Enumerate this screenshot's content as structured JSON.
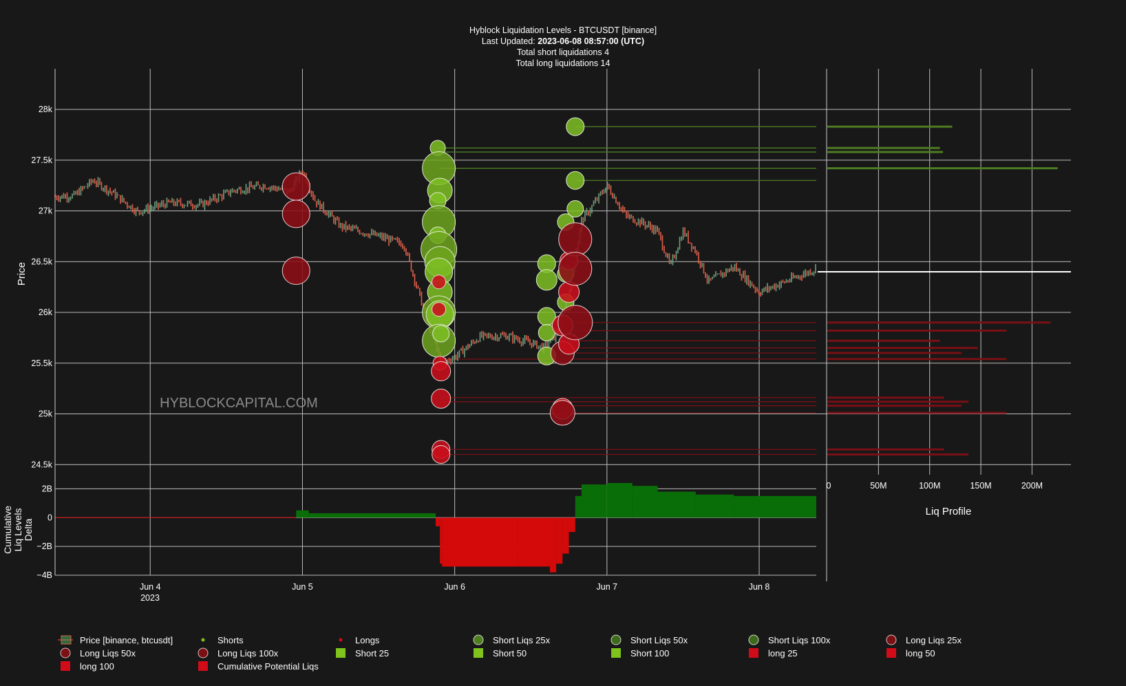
{
  "header": {
    "title": "Hyblock Liquidation Levels - BTCUSDT [binance]",
    "updated_label": "Last Updated:",
    "updated_value": "2023-06-08 08:57:00 (UTC)",
    "shorts_total": "Total short liquidations 4",
    "longs_total": "Total long liquidations 14"
  },
  "watermark": "HYBLOCKCAPITAL.COM",
  "colors": {
    "background": "#181818",
    "grid": "#bdbdbd",
    "short_fill": "#7fc31c",
    "short_dark": "#4a7a1e",
    "long_fill": "#d10c18",
    "long_dark": "#7a0f14",
    "delta_pos": "#0a6e08",
    "delta_neg": "#d40a0a",
    "candle_up": "#6fa07e",
    "candle_down": "#e0604a"
  },
  "chart_data": {
    "type": "scatter",
    "ylabel": "Price",
    "y_ticks": [
      "24.5k",
      "25k",
      "25.5k",
      "26k",
      "26.5k",
      "27k",
      "27.5k",
      "28k"
    ],
    "y_tick_values": [
      24500,
      25000,
      25500,
      26000,
      26500,
      27000,
      27500,
      28000
    ],
    "ylim": [
      24400,
      28400
    ],
    "x_ticks": [
      "Jun 4",
      "Jun 5",
      "Jun 6",
      "Jun 7",
      "Jun 8"
    ],
    "x_tick_year": "2023",
    "x_range": [
      "2023-06-03 09:00",
      "2023-06-08 09:00"
    ],
    "price_path": [
      [
        "2023-06-03 09:00",
        27140
      ],
      [
        "2023-06-03 12:00",
        27150
      ],
      [
        "2023-06-03 15:00",
        27300
      ],
      [
        "2023-06-03 18:00",
        27180
      ],
      [
        "2023-06-03 22:00",
        26990
      ],
      [
        "2023-06-04 03:00",
        27080
      ],
      [
        "2023-06-04 08:00",
        27060
      ],
      [
        "2023-06-04 13:00",
        27200
      ],
      [
        "2023-06-04 18:00",
        27250
      ],
      [
        "2023-06-04 22:00",
        27190
      ],
      [
        "2023-06-05 00:00",
        27400
      ],
      [
        "2023-06-05 02:00",
        27100
      ],
      [
        "2023-06-05 06:00",
        26850
      ],
      [
        "2023-06-05 12:00",
        26750
      ],
      [
        "2023-06-05 16:00",
        26670
      ],
      [
        "2023-06-05 20:00",
        25850
      ],
      [
        "2023-06-05 22:00",
        25500
      ],
      [
        "2023-06-06 00:00",
        25560
      ],
      [
        "2023-06-06 04:00",
        25760
      ],
      [
        "2023-06-06 08:00",
        25770
      ],
      [
        "2023-06-06 12:00",
        25700
      ],
      [
        "2023-06-06 14:00",
        25650
      ],
      [
        "2023-06-06 16:00",
        25780
      ],
      [
        "2023-06-06 18:00",
        26200
      ],
      [
        "2023-06-06 20:00",
        26900
      ],
      [
        "2023-06-07 00:00",
        27250
      ],
      [
        "2023-06-07 03:00",
        26950
      ],
      [
        "2023-06-07 06:00",
        26870
      ],
      [
        "2023-06-07 08:00",
        26800
      ],
      [
        "2023-06-07 10:00",
        26450
      ],
      [
        "2023-06-07 12:00",
        26800
      ],
      [
        "2023-06-07 14:00",
        26600
      ],
      [
        "2023-06-07 16:00",
        26300
      ],
      [
        "2023-06-07 20:00",
        26450
      ],
      [
        "2023-06-08 00:00",
        26200
      ],
      [
        "2023-06-08 04:00",
        26300
      ],
      [
        "2023-06-08 09:00",
        26430
      ]
    ],
    "short_bubbles": [
      {
        "t": "2023-06-05 21:20",
        "p": 27620,
        "r": 11
      },
      {
        "t": "2023-06-05 21:30",
        "p": 27420,
        "r": 24
      },
      {
        "t": "2023-06-05 21:40",
        "p": 27200,
        "r": 18
      },
      {
        "t": "2023-06-05 21:20",
        "p": 27100,
        "r": 12
      },
      {
        "t": "2023-06-05 21:30",
        "p": 26890,
        "r": 24
      },
      {
        "t": "2023-06-05 21:20",
        "p": 26760,
        "r": 12
      },
      {
        "t": "2023-06-05 21:30",
        "p": 26620,
        "r": 26
      },
      {
        "t": "2023-06-05 21:40",
        "p": 26500,
        "r": 22
      },
      {
        "t": "2023-06-05 21:30",
        "p": 26400,
        "r": 20
      },
      {
        "t": "2023-06-05 21:40",
        "p": 26200,
        "r": 18
      },
      {
        "t": "2023-06-05 21:30",
        "p": 26000,
        "r": 24
      },
      {
        "t": "2023-06-05 21:40",
        "p": 25980,
        "r": 20
      },
      {
        "t": "2023-06-05 21:30",
        "p": 25720,
        "r": 24
      },
      {
        "t": "2023-06-05 21:50",
        "p": 25790,
        "r": 12
      },
      {
        "t": "2023-06-06 14:30",
        "p": 26480,
        "r": 13
      },
      {
        "t": "2023-06-06 14:30",
        "p": 26320,
        "r": 15
      },
      {
        "t": "2023-06-06 17:30",
        "p": 26890,
        "r": 12
      },
      {
        "t": "2023-06-06 17:30",
        "p": 26380,
        "r": 12
      },
      {
        "t": "2023-06-06 17:30",
        "p": 26100,
        "r": 12
      },
      {
        "t": "2023-06-06 14:30",
        "p": 25960,
        "r": 13
      },
      {
        "t": "2023-06-06 14:30",
        "p": 25800,
        "r": 12
      },
      {
        "t": "2023-06-06 14:30",
        "p": 25570,
        "r": 13
      },
      {
        "t": "2023-06-06 19:00",
        "p": 27830,
        "r": 13
      },
      {
        "t": "2023-06-06 19:00",
        "p": 27300,
        "r": 13
      },
      {
        "t": "2023-06-06 19:00",
        "p": 27020,
        "r": 12
      }
    ],
    "long_bubbles": [
      {
        "t": "2023-06-04 23:00",
        "p": 27240,
        "r": 20
      },
      {
        "t": "2023-06-04 23:00",
        "p": 26970,
        "r": 20
      },
      {
        "t": "2023-06-04 23:00",
        "p": 26410,
        "r": 20
      },
      {
        "t": "2023-06-05 21:30",
        "p": 26300,
        "r": 10
      },
      {
        "t": "2023-06-05 21:30",
        "p": 26030,
        "r": 10
      },
      {
        "t": "2023-06-05 21:40",
        "p": 25500,
        "r": 10
      },
      {
        "t": "2023-06-05 21:50",
        "p": 25420,
        "r": 14
      },
      {
        "t": "2023-06-05 21:50",
        "p": 25150,
        "r": 14
      },
      {
        "t": "2023-06-05 21:50",
        "p": 24650,
        "r": 13
      },
      {
        "t": "2023-06-05 21:50",
        "p": 24600,
        "r": 13
      },
      {
        "t": "2023-06-06 17:00",
        "p": 25870,
        "r": 15
      },
      {
        "t": "2023-06-06 17:00",
        "p": 25600,
        "r": 17
      },
      {
        "t": "2023-06-06 17:00",
        "p": 25050,
        "r": 15
      },
      {
        "t": "2023-06-06 17:00",
        "p": 25010,
        "r": 18
      },
      {
        "t": "2023-06-06 18:00",
        "p": 26510,
        "r": 13
      },
      {
        "t": "2023-06-06 18:00",
        "p": 26200,
        "r": 15
      },
      {
        "t": "2023-06-06 18:00",
        "p": 25690,
        "r": 15
      },
      {
        "t": "2023-06-06 19:00",
        "p": 26720,
        "r": 24
      },
      {
        "t": "2023-06-06 19:00",
        "p": 26430,
        "r": 24
      },
      {
        "t": "2023-06-06 19:00",
        "p": 25900,
        "r": 25
      }
    ],
    "short_levels": [
      {
        "t": "2023-06-06 19:00",
        "p": 27830,
        "vol": 122000000
      },
      {
        "t": "2023-06-05 21:20",
        "p": 27620,
        "vol": 110000000
      },
      {
        "t": "2023-06-05 21:20",
        "p": 27580,
        "vol": 113000000
      },
      {
        "t": "2023-06-05 21:30",
        "p": 27420,
        "vol": 225000000
      },
      {
        "t": "2023-06-06 19:00",
        "p": 27300,
        "vol": 0
      }
    ],
    "long_levels": [
      {
        "t": "2023-06-06 19:00",
        "p": 25900,
        "vol": 218000000
      },
      {
        "t": "2023-06-06 17:00",
        "p": 25820,
        "vol": 175000000
      },
      {
        "t": "2023-06-06 18:00",
        "p": 25720,
        "vol": 110000000
      },
      {
        "t": "2023-06-06 18:00",
        "p": 25650,
        "vol": 147000000
      },
      {
        "t": "2023-06-06 17:00",
        "p": 25600,
        "vol": 131000000
      },
      {
        "t": "2023-06-05 21:50",
        "p": 25540,
        "vol": 175000000
      },
      {
        "t": "2023-06-05 21:50",
        "p": 25160,
        "vol": 114000000
      },
      {
        "t": "2023-06-05 21:50",
        "p": 25120,
        "vol": 138000000
      },
      {
        "t": "2023-06-06 17:00",
        "p": 25080,
        "vol": 131000000
      },
      {
        "t": "2023-06-06 17:00",
        "p": 25010,
        "vol": 175000000
      },
      {
        "t": "2023-06-05 21:50",
        "p": 24650,
        "vol": 114000000
      },
      {
        "t": "2023-06-05 21:50",
        "p": 24600,
        "vol": 138000000
      }
    ],
    "current_price": 26400,
    "profile": {
      "xlabel": "Liq Profile",
      "x_ticks": [
        "0",
        "50M",
        "100M",
        "150M",
        "200M"
      ],
      "x_tick_values": [
        0,
        50000000,
        100000000,
        150000000,
        200000000
      ],
      "xlim": [
        0,
        238000000
      ]
    },
    "delta": {
      "ylabel_lines": [
        "Cumulative",
        "Liq Levels",
        "Delta"
      ],
      "y_ticks": [
        "−4B",
        "−2B",
        "0",
        "2B"
      ],
      "y_tick_values": [
        -4000000000,
        -2000000000,
        0,
        2000000000
      ],
      "ylim": [
        -4000000000,
        2400000000
      ],
      "steps": [
        [
          "2023-06-03 09:00",
          0
        ],
        [
          "2023-06-04 23:00",
          500000000
        ],
        [
          "2023-06-05 01:00",
          300000000
        ],
        [
          "2023-06-05 21:00",
          -600000000
        ],
        [
          "2023-06-05 21:40",
          -3200000000
        ],
        [
          "2023-06-05 22:00",
          -3400000000
        ],
        [
          "2023-06-06 10:00",
          -3400000000
        ],
        [
          "2023-06-06 15:00",
          -3800000000
        ],
        [
          "2023-06-06 16:00",
          -3200000000
        ],
        [
          "2023-06-06 17:00",
          -2500000000
        ],
        [
          "2023-06-06 18:00",
          -1000000000
        ],
        [
          "2023-06-06 19:00",
          1500000000
        ],
        [
          "2023-06-06 20:00",
          2300000000
        ],
        [
          "2023-06-07 00:00",
          2400000000
        ],
        [
          "2023-06-07 04:00",
          2200000000
        ],
        [
          "2023-06-07 08:00",
          1800000000
        ],
        [
          "2023-06-07 14:00",
          1600000000
        ],
        [
          "2023-06-07 20:00",
          1500000000
        ],
        [
          "2023-06-08 09:00",
          1500000000
        ]
      ]
    }
  },
  "legend": [
    {
      "label": "Price [binance, btcusdt]",
      "icon": "candlestick-icon"
    },
    {
      "label": "Shorts",
      "icon": "dot-green"
    },
    {
      "label": "Longs",
      "icon": "dot-red"
    },
    {
      "label": "Short Liqs 25x",
      "icon": "circle-green"
    },
    {
      "label": "Short Liqs 50x",
      "icon": "circle-green-dark"
    },
    {
      "label": "Short Liqs 100x",
      "icon": "circle-green-dark"
    },
    {
      "label": "Long Liqs 25x",
      "icon": "circle-red-dark"
    },
    {
      "label": "Long Liqs 50x",
      "icon": "circle-red-dark"
    },
    {
      "label": "Long Liqs 100x",
      "icon": "circle-red-dark"
    },
    {
      "label": "Short 25",
      "icon": "square-green"
    },
    {
      "label": "Short 50",
      "icon": "square-green"
    },
    {
      "label": "Short 100",
      "icon": "square-green"
    },
    {
      "label": "long 25",
      "icon": "square-red"
    },
    {
      "label": "long 50",
      "icon": "square-red"
    },
    {
      "label": "long 100",
      "icon": "square-red"
    },
    {
      "label": "Cumulative Potential Liqs",
      "icon": "square-red"
    }
  ]
}
